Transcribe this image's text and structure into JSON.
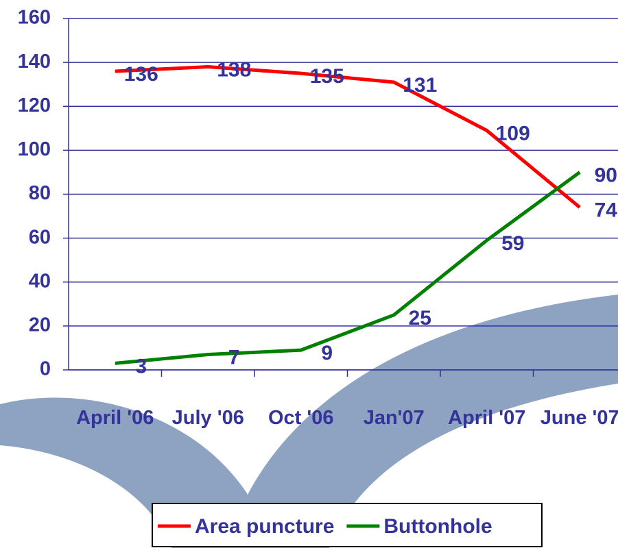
{
  "chart_data": {
    "type": "line",
    "categories": [
      "April '06",
      "July '06",
      "Oct '06",
      "Jan'07",
      "April '07",
      "June '07"
    ],
    "series": [
      {
        "name": "Area puncture",
        "color": "#ff0000",
        "values": [
          136,
          138,
          135,
          131,
          109,
          74
        ]
      },
      {
        "name": "Buttonhole",
        "color": "#008000",
        "values": [
          3,
          7,
          9,
          25,
          59,
          90
        ]
      }
    ],
    "ylim": [
      0,
      160
    ],
    "yticks": [
      0,
      20,
      40,
      60,
      80,
      100,
      120,
      140,
      160
    ],
    "grid": true,
    "legend": "bottom"
  }
}
